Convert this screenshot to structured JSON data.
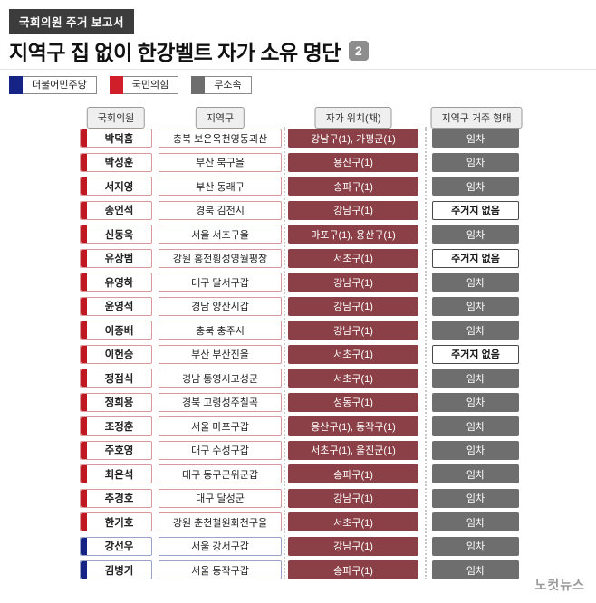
{
  "header": {
    "badge": "국회의원 주거 보고서",
    "title": "지역구 집 없이 한강벨트 자가 소유 명단",
    "page_number": "2"
  },
  "legend": [
    {
      "label": "더불어민주당",
      "color": "#152484"
    },
    {
      "label": "국민의힘",
      "color": "#d01e2a"
    },
    {
      "label": "무소속",
      "color": "#6e6e6e"
    }
  ],
  "colors": {
    "ppp": {
      "main": "#c01820",
      "tint": "#d9999c"
    },
    "dp": {
      "main": "#152484",
      "tint": "#9aa3c7"
    },
    "ind": {
      "main": "#6e6e6e",
      "tint": "#aaaaaa"
    },
    "location_box": "#8a4046",
    "residence_filled": "#6e6e6e"
  },
  "table": {
    "columns": [
      "국회의원",
      "지역구",
      "자가 위치(채)",
      "지역구 거주 형태"
    ],
    "rows": [
      {
        "name": "박덕흠",
        "party": "ppp",
        "district": "충북 보은옥천영동괴산",
        "location": "강남구(1), 가평군(1)",
        "residence": "임차",
        "no_residence": false
      },
      {
        "name": "박성훈",
        "party": "ppp",
        "district": "부산 북구을",
        "location": "용산구(1)",
        "residence": "임차",
        "no_residence": false
      },
      {
        "name": "서지영",
        "party": "ppp",
        "district": "부산 동래구",
        "location": "송파구(1)",
        "residence": "임차",
        "no_residence": false
      },
      {
        "name": "송언석",
        "party": "ppp",
        "district": "경북 김천시",
        "location": "강남구(1)",
        "residence": "주거지 없음",
        "no_residence": true
      },
      {
        "name": "신동욱",
        "party": "ppp",
        "district": "서울 서초구을",
        "location": "마포구(1), 용산구(1)",
        "residence": "임차",
        "no_residence": false
      },
      {
        "name": "유상범",
        "party": "ppp",
        "district": "강원 홍천횡성영월평창",
        "location": "서초구(1)",
        "residence": "주거지 없음",
        "no_residence": true
      },
      {
        "name": "유영하",
        "party": "ppp",
        "district": "대구 달서구갑",
        "location": "강남구(1)",
        "residence": "임차",
        "no_residence": false
      },
      {
        "name": "윤영석",
        "party": "ppp",
        "district": "경남 양산시갑",
        "location": "강남구(1)",
        "residence": "임차",
        "no_residence": false
      },
      {
        "name": "이종배",
        "party": "ppp",
        "district": "충북 충주시",
        "location": "강남구(1)",
        "residence": "임차",
        "no_residence": false
      },
      {
        "name": "이헌승",
        "party": "ppp",
        "district": "부산 부산진을",
        "location": "서초구(1)",
        "residence": "주거지 없음",
        "no_residence": true
      },
      {
        "name": "정점식",
        "party": "ppp",
        "district": "경남 통영시고성군",
        "location": "서초구(1)",
        "residence": "임차",
        "no_residence": false
      },
      {
        "name": "정희용",
        "party": "ppp",
        "district": "경북 고령성주칠곡",
        "location": "성동구(1)",
        "residence": "임차",
        "no_residence": false
      },
      {
        "name": "조정훈",
        "party": "ppp",
        "district": "서울 마포구갑",
        "location": "용산구(1), 동작구(1)",
        "residence": "임차",
        "no_residence": false
      },
      {
        "name": "주호영",
        "party": "ppp",
        "district": "대구 수성구갑",
        "location": "서초구(1), 울진군(1)",
        "residence": "임차",
        "no_residence": false
      },
      {
        "name": "최은석",
        "party": "ppp",
        "district": "대구 동구군위군갑",
        "location": "송파구(1)",
        "residence": "임차",
        "no_residence": false
      },
      {
        "name": "추경호",
        "party": "ppp",
        "district": "대구 달성군",
        "location": "강남구(1)",
        "residence": "임차",
        "no_residence": false
      },
      {
        "name": "한기호",
        "party": "ppp",
        "district": "강원 춘천철원화천구을",
        "location": "서초구(1)",
        "residence": "임차",
        "no_residence": false
      },
      {
        "name": "강선우",
        "party": "dp",
        "district": "서울 강서구갑",
        "location": "강남구(1)",
        "residence": "임차",
        "no_residence": false
      },
      {
        "name": "김병기",
        "party": "dp",
        "district": "서울 동작구갑",
        "location": "송파구(1)",
        "residence": "임차",
        "no_residence": false
      }
    ]
  },
  "footer": {
    "logo": "노컷뉴스"
  }
}
